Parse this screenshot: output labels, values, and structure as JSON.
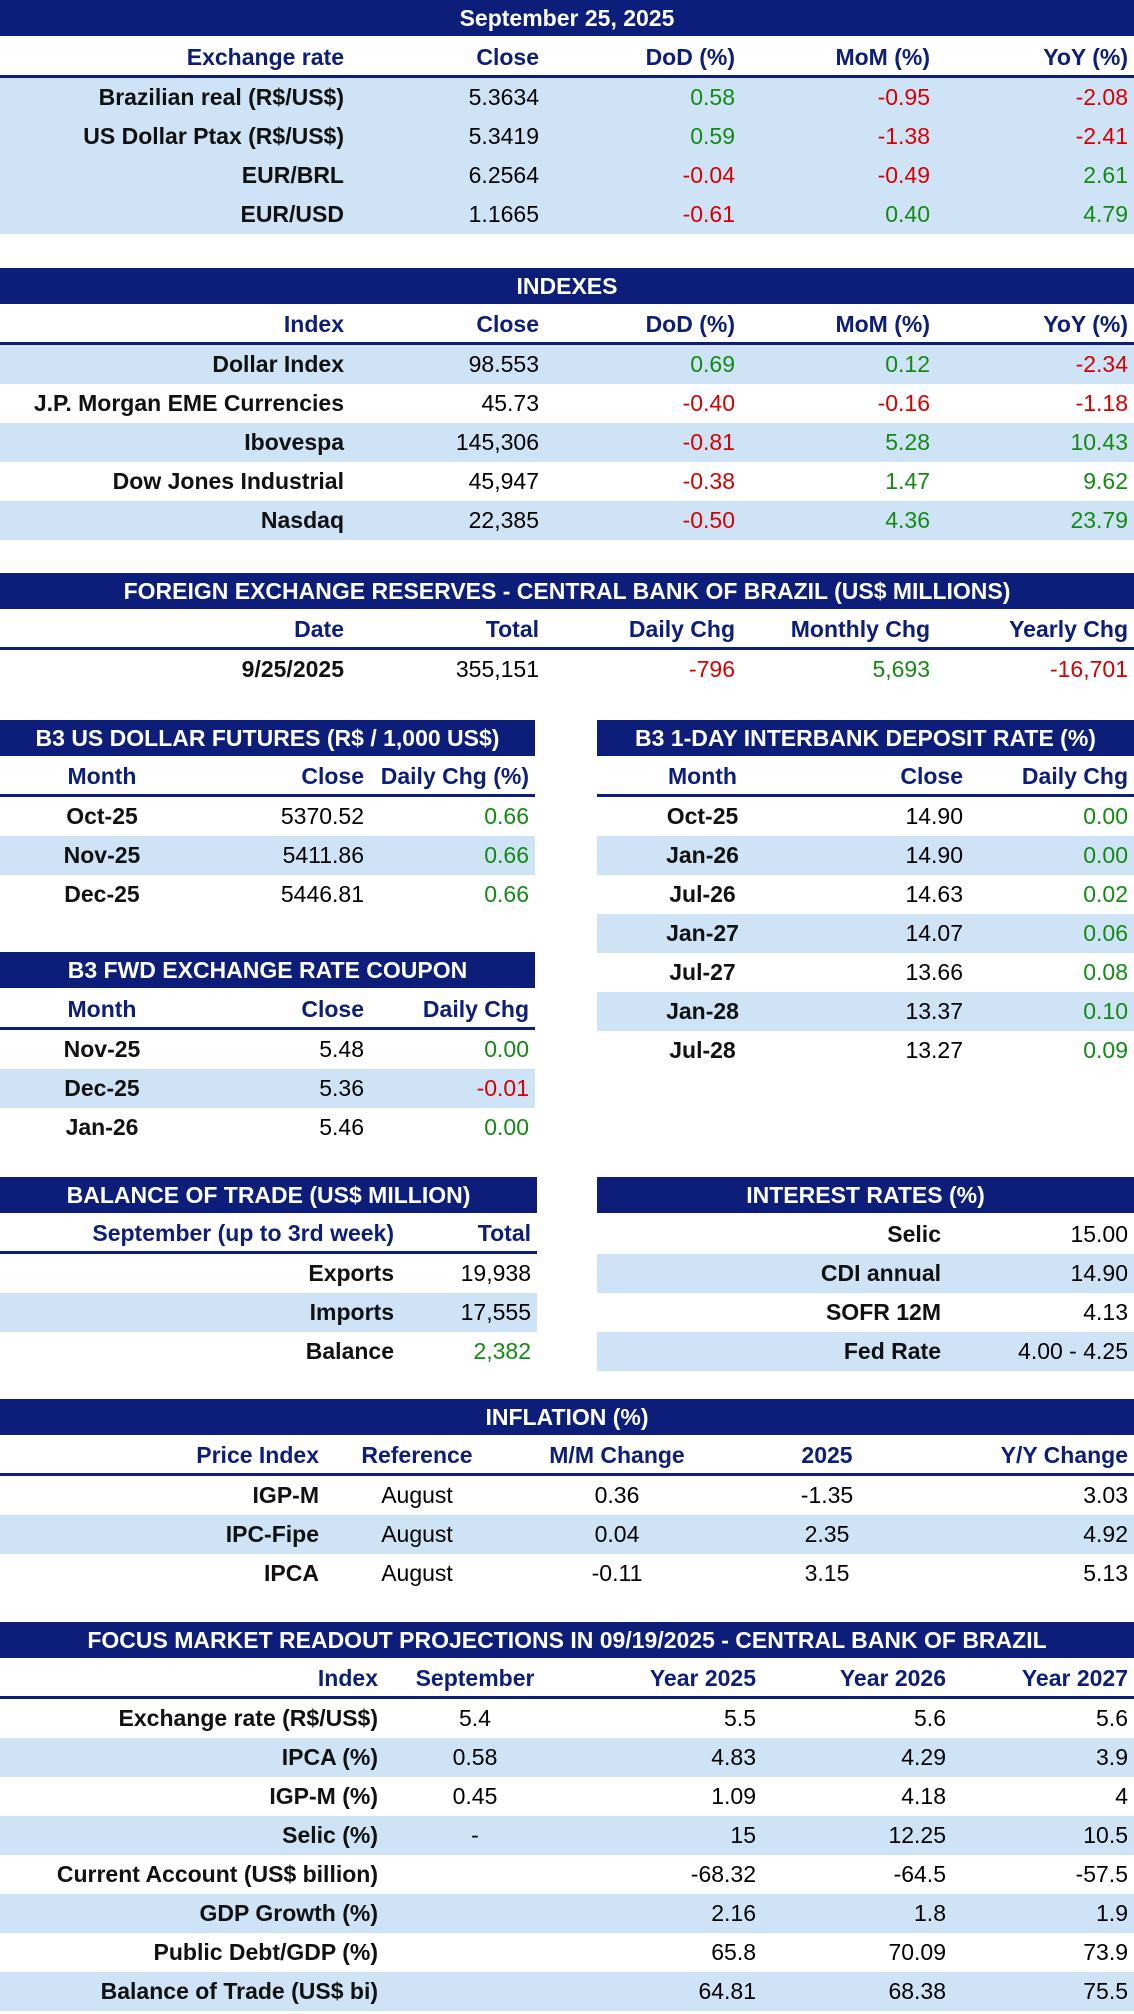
{
  "colors": {
    "header_bg": "#0c1d7a",
    "stripe": "#cfe3f6",
    "positive": "#138a13",
    "negative": "#d60000"
  },
  "exchange": {
    "title": "September 25, 2025",
    "columns": [
      "Exchange rate",
      "Close",
      "DoD (%)",
      "MoM (%)",
      "YoY (%)"
    ],
    "rows": [
      [
        "Brazilian real (R$/US$)",
        "5.3634",
        "0.58",
        "-0.95",
        "-2.08"
      ],
      [
        "US Dollar Ptax (R$/US$)",
        "5.3419",
        "0.59",
        "-1.38",
        "-2.41"
      ],
      [
        "EUR/BRL",
        "6.2564",
        "-0.04",
        "-0.49",
        "2.61"
      ],
      [
        "EUR/USD",
        "1.1665",
        "-0.61",
        "0.40",
        "4.79"
      ]
    ]
  },
  "indexes": {
    "title": "INDEXES",
    "columns": [
      "Index",
      "Close",
      "DoD (%)",
      "MoM (%)",
      "YoY (%)"
    ],
    "rows": [
      [
        "Dollar Index",
        "98.553",
        "0.69",
        "0.12",
        "-2.34"
      ],
      [
        "J.P. Morgan EME Currencies",
        "45.73",
        "-0.40",
        "-0.16",
        "-1.18"
      ],
      [
        "Ibovespa",
        "145,306",
        "-0.81",
        "5.28",
        "10.43"
      ],
      [
        "Dow Jones Industrial",
        "45,947",
        "-0.38",
        "1.47",
        "9.62"
      ],
      [
        "Nasdaq",
        "22,385",
        "-0.50",
        "4.36",
        "23.79"
      ]
    ]
  },
  "reserves": {
    "title": "FOREIGN EXCHANGE RESERVES - CENTRAL BANK OF BRAZIL (US$ MILLIONS)",
    "columns": [
      "Date",
      "Total",
      "Daily Chg",
      "Monthly Chg",
      "Yearly Chg"
    ],
    "rows": [
      [
        "9/25/2025",
        "355,151",
        "-796",
        "5,693",
        "-16,701"
      ]
    ]
  },
  "futures": {
    "title": "B3 US DOLLAR FUTURES (R$ / 1,000 US$)",
    "columns": [
      "Month",
      "Close",
      "Daily Chg (%)"
    ],
    "rows": [
      [
        "Oct-25",
        "5370.52",
        "0.66"
      ],
      [
        "Nov-25",
        "5411.86",
        "0.66"
      ],
      [
        "Dec-25",
        "5446.81",
        "0.66"
      ]
    ]
  },
  "coupon": {
    "title": "B3 FWD EXCHANGE RATE COUPON",
    "columns": [
      "Month",
      "Close",
      "Daily Chg"
    ],
    "rows": [
      [
        "Nov-25",
        "5.48",
        "0.00"
      ],
      [
        "Dec-25",
        "5.36",
        "-0.01"
      ],
      [
        "Jan-26",
        "5.46",
        "0.00"
      ]
    ]
  },
  "interbank": {
    "title": "B3 1-DAY INTERBANK DEPOSIT RATE (%)",
    "columns": [
      "Month",
      "Close",
      "Daily Chg"
    ],
    "rows": [
      [
        "Oct-25",
        "14.90",
        "0.00"
      ],
      [
        "Jan-26",
        "14.90",
        "0.00"
      ],
      [
        "Jul-26",
        "14.63",
        "0.02"
      ],
      [
        "Jan-27",
        "14.07",
        "0.06"
      ],
      [
        "Jul-27",
        "13.66",
        "0.08"
      ],
      [
        "Jan-28",
        "13.37",
        "0.10"
      ],
      [
        "Jul-28",
        "13.27",
        "0.09"
      ]
    ]
  },
  "trade": {
    "title": "BALANCE OF TRADE (US$ MILLION)",
    "columns": [
      "September (up to 3rd week)",
      "Total"
    ],
    "rows": [
      [
        "Exports",
        "19,938"
      ],
      [
        "Imports",
        "17,555"
      ],
      [
        "Balance",
        "2,382"
      ]
    ]
  },
  "rates": {
    "title": "INTEREST RATES (%)",
    "rows": [
      [
        "Selic",
        "15.00"
      ],
      [
        "CDI annual",
        "14.90"
      ],
      [
        "SOFR 12M",
        "4.13"
      ],
      [
        "Fed Rate",
        "4.00 - 4.25"
      ]
    ]
  },
  "inflation": {
    "title": "INFLATION (%)",
    "columns": [
      "Price Index",
      "Reference",
      "M/M Change",
      "2025",
      "Y/Y Change"
    ],
    "rows": [
      [
        "IGP-M",
        "August",
        "0.36",
        "-1.35",
        "3.03"
      ],
      [
        "IPC-Fipe",
        "August",
        "0.04",
        "2.35",
        "4.92"
      ],
      [
        "IPCA",
        "August",
        "-0.11",
        "3.15",
        "5.13"
      ]
    ]
  },
  "focus": {
    "title": "FOCUS MARKET READOUT PROJECTIONS IN 09/19/2025 - CENTRAL BANK OF BRAZIL",
    "columns": [
      "Index",
      "September",
      "Year 2025",
      "Year 2026",
      "Year 2027"
    ],
    "rows": [
      [
        "Exchange rate (R$/US$)",
        "5.4",
        "5.5",
        "5.6",
        "5.6"
      ],
      [
        "IPCA (%)",
        "0.58",
        "4.83",
        "4.29",
        "3.9"
      ],
      [
        "IGP-M (%)",
        "0.45",
        "1.09",
        "4.18",
        "4"
      ],
      [
        "Selic (%)",
        "-",
        "15",
        "12.25",
        "10.5"
      ],
      [
        "Current Account (US$ billion)",
        "",
        "-68.32",
        "-64.5",
        "-57.5"
      ],
      [
        "GDP Growth (%)",
        "",
        "2.16",
        "1.8",
        "1.9"
      ],
      [
        "Public Debt/GDP (%)",
        "",
        "65.8",
        "70.09",
        "73.9"
      ],
      [
        "Balance of Trade (US$ bi)",
        "",
        "64.81",
        "68.38",
        "75.5"
      ]
    ]
  }
}
